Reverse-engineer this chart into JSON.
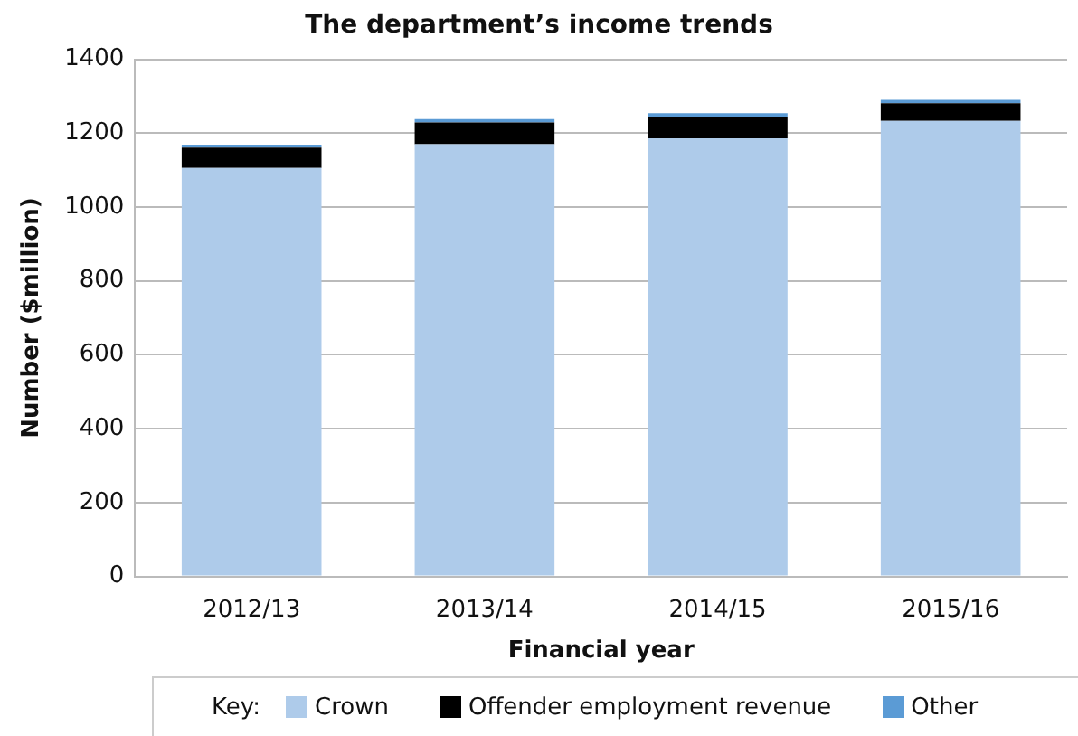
{
  "chart_data": {
    "type": "bar",
    "title": "The department’s income trends",
    "xlabel": "Financial year",
    "ylabel": "Number ($million)",
    "legend_title": "Key:",
    "categories": [
      "2012/13",
      "2013/14",
      "2014/15",
      "2015/16"
    ],
    "stacked": true,
    "series": [
      {
        "name": "Crown",
        "color": "#aecbea",
        "values": [
          1106,
          1170,
          1186,
          1233
        ]
      },
      {
        "name": "Offender employment revenue",
        "color": "#000000",
        "values": [
          55,
          59,
          59,
          48
        ]
      },
      {
        "name": "Other",
        "color": "#5b9bd5",
        "values": [
          8,
          9,
          9,
          9
        ]
      }
    ],
    "ylim": [
      0,
      1400
    ],
    "yticks": [
      0,
      200,
      400,
      600,
      800,
      1000,
      1200,
      1400
    ],
    "grid": "y",
    "legend": "bottom"
  }
}
